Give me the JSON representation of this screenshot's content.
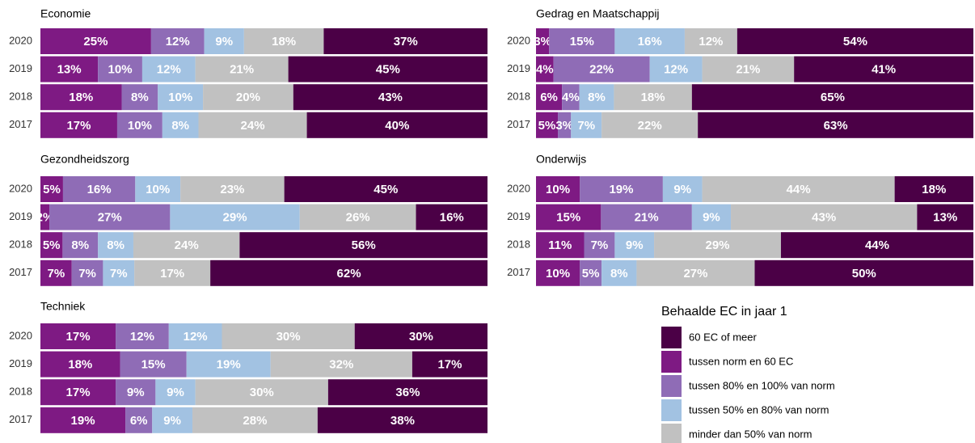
{
  "chart_data": [
    {
      "type": "bar",
      "title": "Economie",
      "categories": [
        "2020",
        "2019",
        "2018",
        "2017"
      ],
      "series": [
        {
          "color": "#7e1a83",
          "values": [
            25,
            13,
            18,
            17
          ],
          "value_labels": [
            "25%",
            "13%",
            "18%",
            "17%"
          ]
        },
        {
          "color": "#8f6cb6",
          "values": [
            12,
            10,
            8,
            10
          ],
          "value_labels": [
            "12%",
            "10%",
            "8%",
            "10%"
          ]
        },
        {
          "color": "#a2c2e2",
          "values": [
            9,
            12,
            10,
            8
          ],
          "value_labels": [
            "9%",
            "12%",
            "10%",
            "8%"
          ]
        },
        {
          "color": "#c1c1c1",
          "values": [
            18,
            21,
            20,
            24
          ],
          "value_labels": [
            "18%",
            "21%",
            "20%",
            "24%"
          ]
        },
        {
          "color": "#4b0046",
          "values": [
            37,
            45,
            43,
            40
          ],
          "value_labels": [
            "37%",
            "45%",
            "43%",
            "40%"
          ]
        }
      ]
    },
    {
      "type": "bar",
      "title": "Gedrag en Maatschappij",
      "categories": [
        "2020",
        "2019",
        "2018",
        "2017"
      ],
      "series": [
        {
          "color": "#7e1a83",
          "values": [
            3,
            4,
            6,
            5
          ],
          "value_labels": [
            "3%",
            "4%",
            "6%",
            "5%"
          ]
        },
        {
          "color": "#8f6cb6",
          "values": [
            15,
            22,
            4,
            3
          ],
          "value_labels": [
            "15%",
            "22%",
            "4%",
            "3%"
          ]
        },
        {
          "color": "#a2c2e2",
          "values": [
            16,
            12,
            8,
            7
          ],
          "value_labels": [
            "16%",
            "12%",
            "8%",
            "7%"
          ]
        },
        {
          "color": "#c1c1c1",
          "values": [
            12,
            21,
            18,
            22
          ],
          "value_labels": [
            "12%",
            "21%",
            "18%",
            "22%"
          ]
        },
        {
          "color": "#4b0046",
          "values": [
            54,
            41,
            65,
            63
          ],
          "value_labels": [
            "54%",
            "41%",
            "65%",
            "63%"
          ]
        }
      ]
    },
    {
      "type": "bar",
      "title": "Gezondheidszorg",
      "categories": [
        "2020",
        "2019",
        "2018",
        "2017"
      ],
      "series": [
        {
          "color": "#7e1a83",
          "values": [
            5,
            2,
            5,
            7
          ],
          "value_labels": [
            "5%",
            "2%",
            "5%",
            "7%"
          ]
        },
        {
          "color": "#8f6cb6",
          "values": [
            16,
            27,
            8,
            7
          ],
          "value_labels": [
            "16%",
            "27%",
            "8%",
            "7%"
          ]
        },
        {
          "color": "#a2c2e2",
          "values": [
            10,
            29,
            8,
            7
          ],
          "value_labels": [
            "10%",
            "29%",
            "8%",
            "7%"
          ]
        },
        {
          "color": "#c1c1c1",
          "values": [
            23,
            26,
            24,
            17
          ],
          "value_labels": [
            "23%",
            "26%",
            "24%",
            "17%"
          ]
        },
        {
          "color": "#4b0046",
          "values": [
            45,
            16,
            56,
            62
          ],
          "value_labels": [
            "45%",
            "16%",
            "56%",
            "62%"
          ]
        }
      ]
    },
    {
      "type": "bar",
      "title": "Onderwijs",
      "categories": [
        "2020",
        "2019",
        "2018",
        "2017"
      ],
      "series": [
        {
          "color": "#7e1a83",
          "values": [
            10,
            15,
            11,
            10
          ],
          "value_labels": [
            "10%",
            "15%",
            "11%",
            "10%"
          ]
        },
        {
          "color": "#8f6cb6",
          "values": [
            19,
            21,
            7,
            5
          ],
          "value_labels": [
            "19%",
            "21%",
            "7%",
            "5%"
          ]
        },
        {
          "color": "#a2c2e2",
          "values": [
            9,
            9,
            9,
            8
          ],
          "value_labels": [
            "9%",
            "9%",
            "9%",
            "8%"
          ]
        },
        {
          "color": "#c1c1c1",
          "values": [
            44,
            43,
            29,
            27
          ],
          "value_labels": [
            "44%",
            "43%",
            "29%",
            "27%"
          ]
        },
        {
          "color": "#4b0046",
          "values": [
            18,
            13,
            44,
            50
          ],
          "value_labels": [
            "18%",
            "13%",
            "44%",
            "50%"
          ]
        }
      ]
    },
    {
      "type": "bar",
      "title": "Techniek",
      "categories": [
        "2020",
        "2019",
        "2018",
        "2017"
      ],
      "series": [
        {
          "color": "#7e1a83",
          "values": [
            17,
            18,
            17,
            19
          ],
          "value_labels": [
            "17%",
            "18%",
            "17%",
            "19%"
          ]
        },
        {
          "color": "#8f6cb6",
          "values": [
            12,
            15,
            9,
            6
          ],
          "value_labels": [
            "12%",
            "15%",
            "9%",
            "6%"
          ]
        },
        {
          "color": "#a2c2e2",
          "values": [
            12,
            19,
            9,
            9
          ],
          "value_labels": [
            "12%",
            "19%",
            "9%",
            "9%"
          ]
        },
        {
          "color": "#c1c1c1",
          "values": [
            30,
            32,
            30,
            28
          ],
          "value_labels": [
            "30%",
            "32%",
            "30%",
            "28%"
          ]
        },
        {
          "color": "#4b0046",
          "values": [
            30,
            17,
            36,
            38
          ],
          "value_labels": [
            "30%",
            "17%",
            "36%",
            "38%"
          ]
        }
      ]
    }
  ],
  "legend": {
    "title": "Behaalde EC in jaar 1",
    "items": [
      {
        "name": "60 EC of meer",
        "color": "#4b0046"
      },
      {
        "name": "tussen norm en 60 EC",
        "color": "#7e1a83"
      },
      {
        "name": "tussen 80% en 100% van norm",
        "color": "#8f6cb6"
      },
      {
        "name": "tussen 50% en 80% van norm",
        "color": "#a2c2e2"
      },
      {
        "name": "minder dan 50% van norm",
        "color": "#c1c1c1"
      }
    ]
  }
}
